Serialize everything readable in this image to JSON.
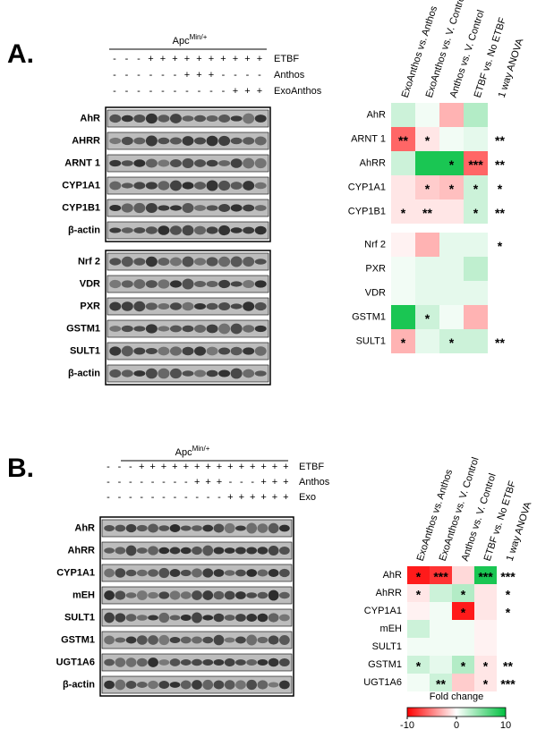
{
  "panels": [
    {
      "label": "A.",
      "genotype": {
        "base": "Apc",
        "sup": "Min/+"
      },
      "conditions": [
        {
          "name": "ETBF",
          "signs": [
            "-",
            "-",
            "-",
            "+",
            "+",
            "+",
            "+",
            "+",
            "+",
            "+",
            "+",
            "+",
            "+"
          ]
        },
        {
          "name": "Anthos",
          "signs": [
            "-",
            "-",
            "-",
            "-",
            "-",
            "-",
            "+",
            "+",
            "+",
            "-",
            "-",
            "-",
            "-"
          ]
        },
        {
          "name": "ExoAnthos",
          "signs": [
            "-",
            "-",
            "-",
            "-",
            "-",
            "-",
            "-",
            "-",
            "-",
            "-",
            "+",
            "+",
            "+"
          ]
        }
      ],
      "blot_groups": [
        [
          "AhR",
          "AHRR",
          "ARNT 1",
          "CYP1A1",
          "CYP1B1",
          "β-actin"
        ],
        [
          "Nrf 2",
          "VDR",
          "PXR",
          "GSTM1",
          "SULT1",
          "β-actin"
        ]
      ],
      "heatmap": {
        "columns": [
          "ExoAnthos vs. Anthos",
          "ExoAnthos vs. V. Control",
          "Anthos vs. V. Control",
          "ETBF vs. No ETBF",
          "1 way ANOVA"
        ],
        "groups": [
          {
            "rows": [
              {
                "name": "AhR",
                "values": [
                  2,
                  0.5,
                  -3,
                  3
                ],
                "stars": [
                  null,
                  null,
                  null,
                  null,
                  null
                ]
              },
              {
                "name": "ARNT 1",
                "values": [
                  -6,
                  -1,
                  0.5,
                  1
                ],
                "stars": [
                  "**",
                  "*",
                  null,
                  null,
                  "**"
                ]
              },
              {
                "name": "AhRR",
                "values": [
                  2,
                  9,
                  9,
                  -6
                ],
                "stars": [
                  null,
                  null,
                  "*",
                  "***",
                  "**"
                ]
              },
              {
                "name": "CYP1A1",
                "values": [
                  -1,
                  -2,
                  -2.5,
                  2
                ],
                "stars": [
                  null,
                  "*",
                  "*",
                  "*",
                  "*"
                ]
              },
              {
                "name": "CYP1B1",
                "values": [
                  -1,
                  -1,
                  -1,
                  2
                ],
                "stars": [
                  "*",
                  "**",
                  null,
                  "*",
                  "**"
                ]
              }
            ]
          },
          {
            "rows": [
              {
                "name": "Nrf 2",
                "values": [
                  -0.5,
                  -3,
                  1,
                  1
                ],
                "stars": [
                  null,
                  null,
                  null,
                  null,
                  "*"
                ]
              },
              {
                "name": "PXR",
                "values": [
                  0.5,
                  1,
                  1,
                  2.5
                ],
                "stars": [
                  null,
                  null,
                  null,
                  null,
                  null
                ]
              },
              {
                "name": "VDR",
                "values": [
                  0.5,
                  1,
                  1,
                  1
                ],
                "stars": [
                  null,
                  null,
                  null,
                  null,
                  null
                ]
              },
              {
                "name": "GSTM1",
                "values": [
                  9,
                  2,
                  0.5,
                  -3
                ],
                "stars": [
                  null,
                  "*",
                  null,
                  null,
                  null
                ]
              },
              {
                "name": "SULT1",
                "values": [
                  -3,
                  1,
                  2,
                  2
                ],
                "stars": [
                  "*",
                  null,
                  "*",
                  null,
                  "**"
                ]
              }
            ]
          }
        ]
      }
    },
    {
      "label": "B.",
      "genotype": {
        "base": "Apc",
        "sup": "Min/+"
      },
      "conditions": [
        {
          "name": "ETBF",
          "signs": [
            "-",
            "-",
            "-",
            "+",
            "+",
            "+",
            "+",
            "+",
            "+",
            "+",
            "+",
            "+",
            "+",
            "+",
            "+",
            "+",
            "+"
          ]
        },
        {
          "name": "Anthos",
          "signs": [
            "-",
            "-",
            "-",
            "-",
            "-",
            "-",
            "-",
            "-",
            "+",
            "+",
            "+",
            "-",
            "-",
            "-",
            "+",
            "+",
            "+"
          ]
        },
        {
          "name": "Exo",
          "signs": [
            "-",
            "-",
            "-",
            "-",
            "-",
            "-",
            "-",
            "-",
            "-",
            "-",
            "-",
            "+",
            "+",
            "+",
            "+",
            "+",
            "+"
          ]
        }
      ],
      "blot_groups": [
        [
          "AhR",
          "AhRR",
          "CYP1A1",
          "mEH",
          "SULT1",
          "GSTM1",
          "UGT1A6",
          "β-actin"
        ]
      ],
      "heatmap": {
        "columns": [
          "ExoAnthos vs. Anthos",
          "ExoAnthos vs. V. Control",
          "Anthos vs. V. Control",
          "ETBF vs. No ETBF",
          "1 way ANOVA"
        ],
        "groups": [
          {
            "rows": [
              {
                "name": "AhR",
                "values": [
                  -9,
                  -8,
                  -1.5,
                  9
                ],
                "stars": [
                  "*",
                  "***",
                  null,
                  "***",
                  "***"
                ]
              },
              {
                "name": "AhRR",
                "values": [
                  -1,
                  2,
                  3,
                  -1
                ],
                "stars": [
                  "*",
                  null,
                  "*",
                  null,
                  "*"
                ]
              },
              {
                "name": "CYP1A1",
                "values": [
                  -0.5,
                  0.5,
                  -9,
                  -1
                ],
                "stars": [
                  null,
                  null,
                  "*",
                  null,
                  "*"
                ]
              },
              {
                "name": "mEH",
                "values": [
                  2,
                  0.5,
                  0.5,
                  -0.5
                ],
                "stars": [
                  null,
                  null,
                  null,
                  null,
                  null
                ]
              },
              {
                "name": "SULT1",
                "values": [
                  0.5,
                  0.5,
                  0.5,
                  -0.5
                ],
                "stars": [
                  null,
                  null,
                  null,
                  null,
                  null
                ]
              },
              {
                "name": "GSTM1",
                "values": [
                  2,
                  1,
                  3,
                  -1
                ],
                "stars": [
                  "*",
                  null,
                  "*",
                  "*",
                  "**"
                ]
              },
              {
                "name": "UGT1A6",
                "values": [
                  0.5,
                  2,
                  -2,
                  -1
                ],
                "stars": [
                  null,
                  "**",
                  null,
                  "*",
                  "***"
                ]
              }
            ]
          }
        ],
        "colorscale": {
          "label": "Fold change",
          "min": -10,
          "max": 10,
          "ticks": [
            -10,
            0,
            10
          ],
          "low": "#ff0000",
          "mid": "#ffffff",
          "high": "#00c040"
        }
      }
    }
  ]
}
